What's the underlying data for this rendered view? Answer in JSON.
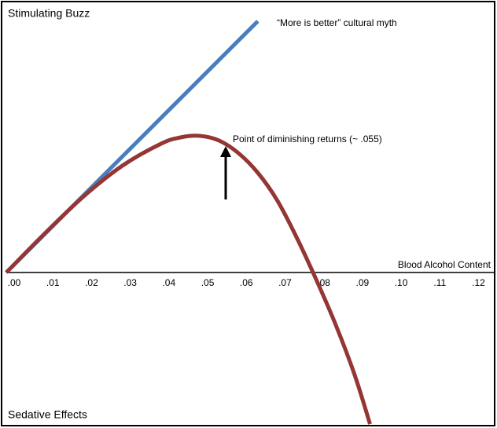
{
  "chart_data": {
    "type": "line",
    "y_label_top": "Stimulating Buzz",
    "y_label_bottom": "Sedative Effects",
    "x_label": "Blood Alcohol Content",
    "annotations": [
      "“More is better” cultural myth",
      "Point of diminishing returns (~ .055)"
    ],
    "xlim": [
      0,
      0.126
    ],
    "ylim": [
      -1.93,
      3.35
    ],
    "xticks": [
      {
        "value": 0,
        "label": ".00"
      },
      {
        "value": 0.01,
        "label": ".01"
      },
      {
        "value": 0.02,
        "label": ".02"
      },
      {
        "value": 0.03,
        "label": ".03"
      },
      {
        "value": 0.04,
        "label": ".04"
      },
      {
        "value": 0.05,
        "label": ".05"
      },
      {
        "value": 0.06,
        "label": ".06"
      },
      {
        "value": 0.07,
        "label": ".07"
      },
      {
        "value": 0.08,
        "label": ".08"
      },
      {
        "value": 0.09,
        "label": ".09"
      },
      {
        "value": 0.1,
        "label": ".10"
      },
      {
        "value": 0.11,
        "label": ".11"
      },
      {
        "value": 0.12,
        "label": ".12"
      }
    ],
    "grid": false,
    "series": [
      {
        "color": "#4a7ebb",
        "x": [
          0,
          0.065
        ],
        "values": [
          0,
          3.2
        ]
      },
      {
        "color": "#943634",
        "x": [
          0,
          0.01,
          0.02,
          0.03,
          0.04,
          0.045,
          0.05,
          0.055,
          0.06,
          0.065,
          0.07,
          0.075,
          0.08,
          0.085,
          0.09,
          0.094
        ],
        "values": [
          0,
          0.5,
          0.97,
          1.36,
          1.64,
          1.72,
          1.74,
          1.68,
          1.52,
          1.27,
          0.92,
          0.45,
          -0.08,
          -0.65,
          -1.3,
          -1.93
        ]
      }
    ]
  }
}
